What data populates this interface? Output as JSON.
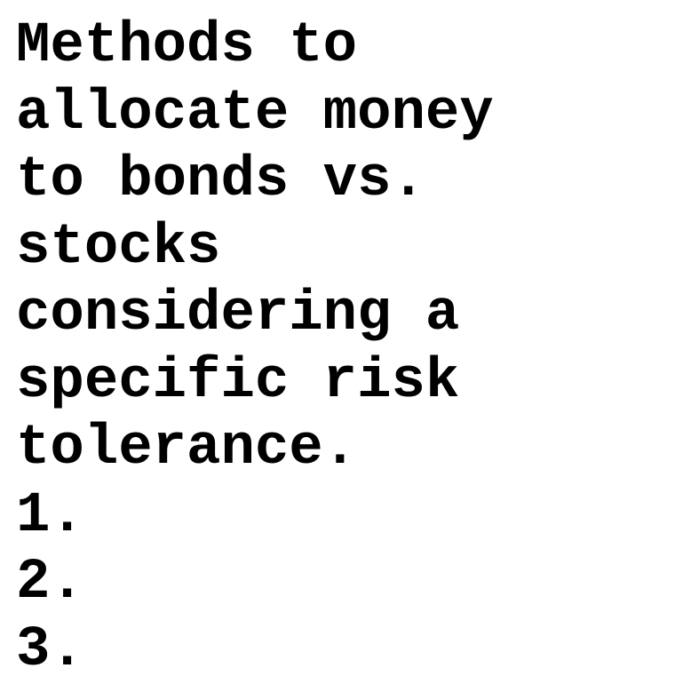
{
  "document": {
    "lines": [
      "Methods to",
      "allocate money",
      "to bonds vs.",
      "stocks",
      "considering a",
      "specific risk",
      "tolerance.",
      "1.",
      "2.",
      "3."
    ]
  }
}
